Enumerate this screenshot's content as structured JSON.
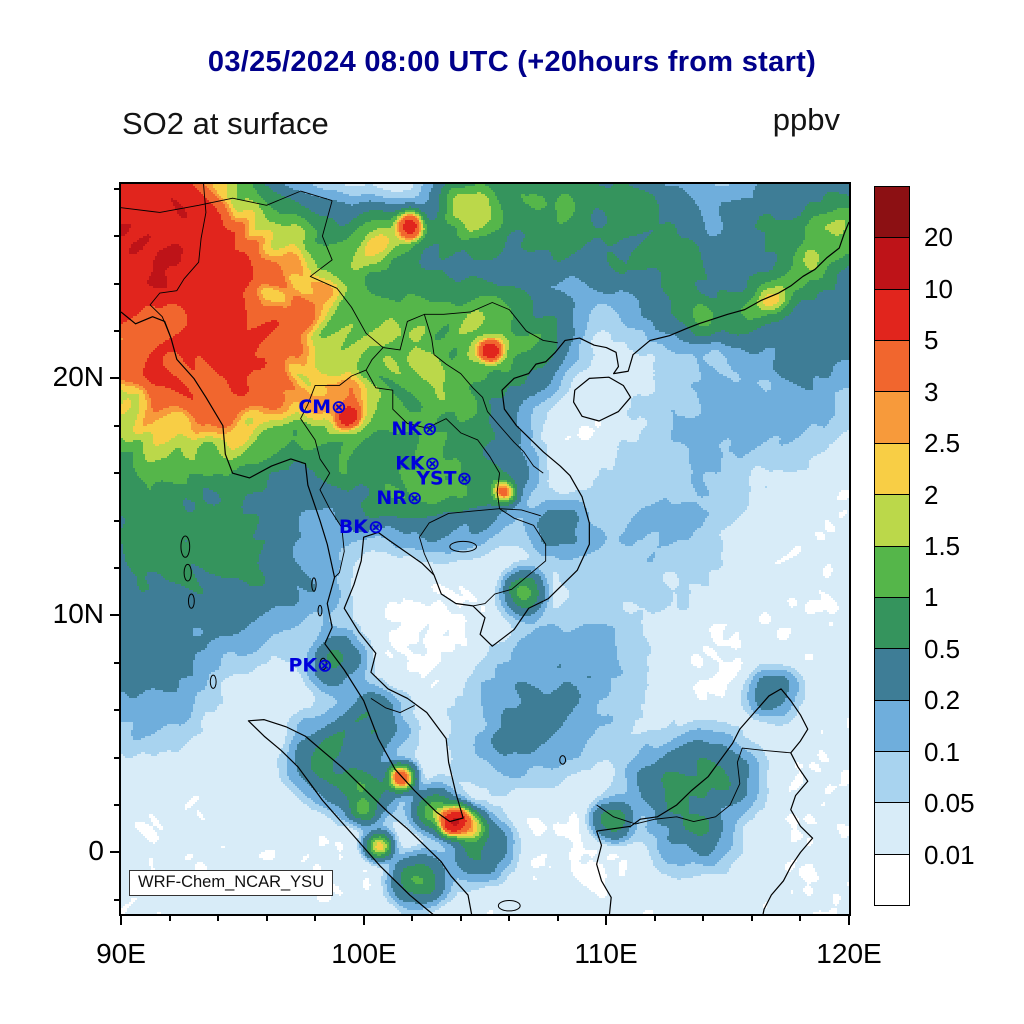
{
  "header": {
    "title": "03/25/2024 08:00 UTC (+20hours from start)",
    "variable_label": "SO2 at surface",
    "units_label": "ppbv"
  },
  "credit_label": "WRF-Chem_NCAR_YSU",
  "axes": {
    "x_tick_labels": [
      "90E",
      "100E",
      "110E",
      "120E"
    ],
    "x_tick_lons": [
      90,
      100,
      110,
      120
    ],
    "y_tick_labels": [
      "0",
      "10N",
      "20N"
    ],
    "y_tick_lats": [
      0,
      10,
      20
    ],
    "lon_range": [
      90,
      120
    ],
    "lat_range": [
      -2.6,
      28.2
    ]
  },
  "colors": {
    "title_color": "#00008b",
    "station_color": "#0000dc",
    "coastline_color": "#000000"
  },
  "chart_data": {
    "type": "filled_contour_map",
    "variable": "SO2 at surface",
    "valid_time": "03/25/2024 08:00 UTC (+20hours from start)",
    "units": "ppbv",
    "model": "WRF-Chem_NCAR_YSU",
    "legend_position": "right",
    "lon_range": [
      90,
      120
    ],
    "lat_range": [
      -2.6,
      28.2
    ],
    "contour_levels_ppbv": [
      0.01,
      0.05,
      0.1,
      0.2,
      0.5,
      1,
      1.5,
      2,
      2.5,
      3,
      5,
      10,
      20
    ],
    "band_colors": [
      "#ffffff",
      "#d8ecf8",
      "#a8d3ef",
      "#6faedc",
      "#3e7d96",
      "#35945d",
      "#55b64a",
      "#bbd84a",
      "#f8ce45",
      "#f79a3b",
      "#f1662e",
      "#e1251d",
      "#be1318",
      "#8c1013"
    ],
    "station_marker": "⊗",
    "stations": [
      {
        "name": "CM",
        "lon": 98.98,
        "lat": 18.8
      },
      {
        "name": "NK",
        "lon": 102.72,
        "lat": 17.88
      },
      {
        "name": "KK",
        "lon": 102.83,
        "lat": 16.43
      },
      {
        "name": "YST",
        "lon": 104.15,
        "lat": 15.8
      },
      {
        "name": "NR",
        "lon": 102.1,
        "lat": 14.97
      },
      {
        "name": "BK",
        "lon": 100.5,
        "lat": 13.75
      },
      {
        "name": "PK",
        "lon": 98.4,
        "lat": 7.9
      }
    ],
    "field_approximation": {
      "note": "approximate gaussian reconstruction of the plotted SO2 surface field",
      "base_ppbv": 0.004,
      "noise_amplitude_ppbv": 0.024,
      "gaussian_sources_lon_lat_sigma_amp": [
        [
          90.8,
          26.8,
          1.7,
          9
        ],
        [
          93.2,
          26.0,
          1.5,
          2.5
        ],
        [
          92.0,
          24.6,
          1.9,
          3.2
        ],
        [
          90.4,
          22.8,
          1.8,
          2.6
        ],
        [
          94.0,
          21.7,
          1.5,
          3.0
        ],
        [
          95.8,
          22.6,
          1.7,
          1.5
        ],
        [
          96.9,
          24.9,
          1.5,
          1.0
        ],
        [
          94.6,
          24.9,
          1.4,
          1.6
        ],
        [
          92.3,
          20.1,
          1.8,
          1.5
        ],
        [
          94.9,
          19.2,
          1.5,
          1.7
        ],
        [
          96.4,
          20.9,
          1.3,
          1.1
        ],
        [
          90.6,
          19.5,
          1.5,
          1.1
        ],
        [
          97.6,
          22.7,
          1.5,
          0.8
        ],
        [
          98.9,
          24.0,
          1.5,
          0.8
        ],
        [
          99.35,
          18.35,
          0.28,
          5
        ],
        [
          99.0,
          18.8,
          1.0,
          1.6
        ],
        [
          98.3,
          17.1,
          1.1,
          0.9
        ],
        [
          100.3,
          19.8,
          1.1,
          0.9
        ],
        [
          97.9,
          19.9,
          1.0,
          1.0
        ],
        [
          101.2,
          21.5,
          1.3,
          0.8
        ],
        [
          103.2,
          22.4,
          1.5,
          0.8
        ],
        [
          105.2,
          21.15,
          0.26,
          7
        ],
        [
          104.9,
          21.8,
          1.1,
          0.9
        ],
        [
          104.3,
          19.6,
          1.4,
          0.7
        ],
        [
          106.8,
          21.9,
          1.1,
          0.8
        ],
        [
          102.5,
          19.3,
          1.3,
          0.6
        ],
        [
          101.9,
          26.45,
          0.32,
          6
        ],
        [
          100.75,
          25.6,
          0.8,
          1.5
        ],
        [
          103.9,
          26.2,
          1.0,
          1.0
        ],
        [
          104.5,
          27.5,
          0.7,
          1.6
        ],
        [
          106.3,
          27.3,
          1.3,
          0.7
        ],
        [
          108.6,
          27.0,
          1.6,
          0.5
        ],
        [
          110.8,
          26.5,
          1.8,
          0.45
        ],
        [
          113.0,
          24.1,
          1.3,
          0.55
        ],
        [
          115.6,
          23.1,
          0.9,
          0.75
        ],
        [
          116.9,
          23.45,
          0.45,
          1.5
        ],
        [
          118.2,
          24.8,
          0.9,
          0.8
        ],
        [
          119.8,
          26.4,
          1.0,
          1.1
        ],
        [
          117.3,
          26.6,
          1.4,
          0.45
        ],
        [
          114.0,
          22.6,
          0.5,
          0.9
        ],
        [
          102.3,
          17.4,
          1.5,
          0.6
        ],
        [
          104.9,
          16.1,
          1.1,
          0.55
        ],
        [
          105.75,
          15.2,
          0.28,
          2.6
        ],
        [
          101.6,
          15.6,
          1.2,
          0.5
        ],
        [
          103.6,
          15.0,
          1.2,
          0.45
        ],
        [
          100.1,
          15.3,
          1.0,
          0.5
        ],
        [
          106.6,
          10.95,
          0.45,
          1.1
        ],
        [
          108.1,
          13.6,
          0.7,
          0.35
        ],
        [
          91.5,
          16.8,
          2.8,
          0.5
        ],
        [
          91.0,
          11.5,
          2.4,
          0.28
        ],
        [
          94.6,
          13.2,
          2.0,
          0.28
        ],
        [
          90.6,
          7.5,
          1.8,
          0.2
        ],
        [
          96.3,
          11.8,
          1.6,
          0.22
        ],
        [
          93.0,
          17.8,
          2.2,
          0.4
        ],
        [
          98.9,
          8.1,
          0.7,
          0.45
        ],
        [
          100.4,
          5.4,
          0.8,
          0.55
        ],
        [
          98.6,
          4.1,
          0.9,
          0.6
        ],
        [
          99.9,
          2.6,
          0.7,
          0.8
        ],
        [
          100.6,
          0.3,
          0.3,
          2.6
        ],
        [
          100.0,
          1.7,
          0.3,
          1.4
        ],
        [
          101.55,
          3.15,
          0.3,
          4.5
        ],
        [
          103.75,
          1.33,
          0.32,
          9
        ],
        [
          104.45,
          1.05,
          0.35,
          2.2
        ],
        [
          102.9,
          1.8,
          0.5,
          1.0
        ],
        [
          104.9,
          0.1,
          0.7,
          0.5
        ],
        [
          102.3,
          -1.2,
          0.6,
          0.9
        ],
        [
          110.3,
          1.4,
          0.45,
          0.9
        ],
        [
          112.9,
          2.9,
          1.1,
          0.5
        ],
        [
          114.6,
          3.3,
          0.9,
          0.45
        ],
        [
          113.6,
          0.9,
          0.9,
          0.45
        ],
        [
          116.9,
          6.7,
          0.6,
          0.45
        ],
        [
          106.4,
          5.2,
          1.6,
          0.2
        ],
        [
          108.6,
          7.6,
          1.8,
          0.14
        ],
        [
          112.2,
          13.2,
          2.2,
          0.1
        ],
        [
          115.2,
          18.6,
          2.2,
          0.12
        ],
        [
          118.6,
          20.8,
          1.8,
          0.14
        ],
        [
          119.5,
          22.5,
          1.5,
          0.2
        ],
        [
          102.8,
          8.2,
          2.0,
          -0.015
        ],
        [
          108.0,
          17.5,
          1.8,
          -0.012
        ],
        [
          113.5,
          9.5,
          2.5,
          -0.012
        ],
        [
          117.0,
          14.0,
          2.2,
          -0.01
        ],
        [
          107.5,
          2.0,
          2.0,
          -0.012
        ]
      ]
    }
  }
}
